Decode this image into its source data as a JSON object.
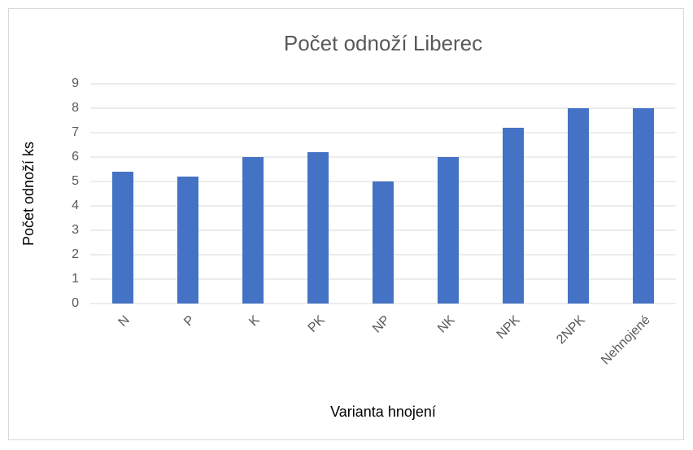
{
  "chart_data": {
    "type": "bar",
    "title": "Počet odnoží Liberec",
    "x_label": "Varianta hnojení",
    "y_label": "Počet odnoží ks",
    "categories": [
      "N",
      "P",
      "K",
      "PK",
      "NP",
      "NK",
      "NPK",
      "2NPK",
      "Nehnojené"
    ],
    "values": [
      5.4,
      5.2,
      6,
      6.2,
      5,
      6,
      7.2,
      8,
      8
    ],
    "color": "#4472c4",
    "ylim": [
      0,
      9
    ],
    "yticks": [
      0,
      1,
      2,
      3,
      4,
      5,
      6,
      7,
      8,
      9
    ],
    "grid": true
  }
}
